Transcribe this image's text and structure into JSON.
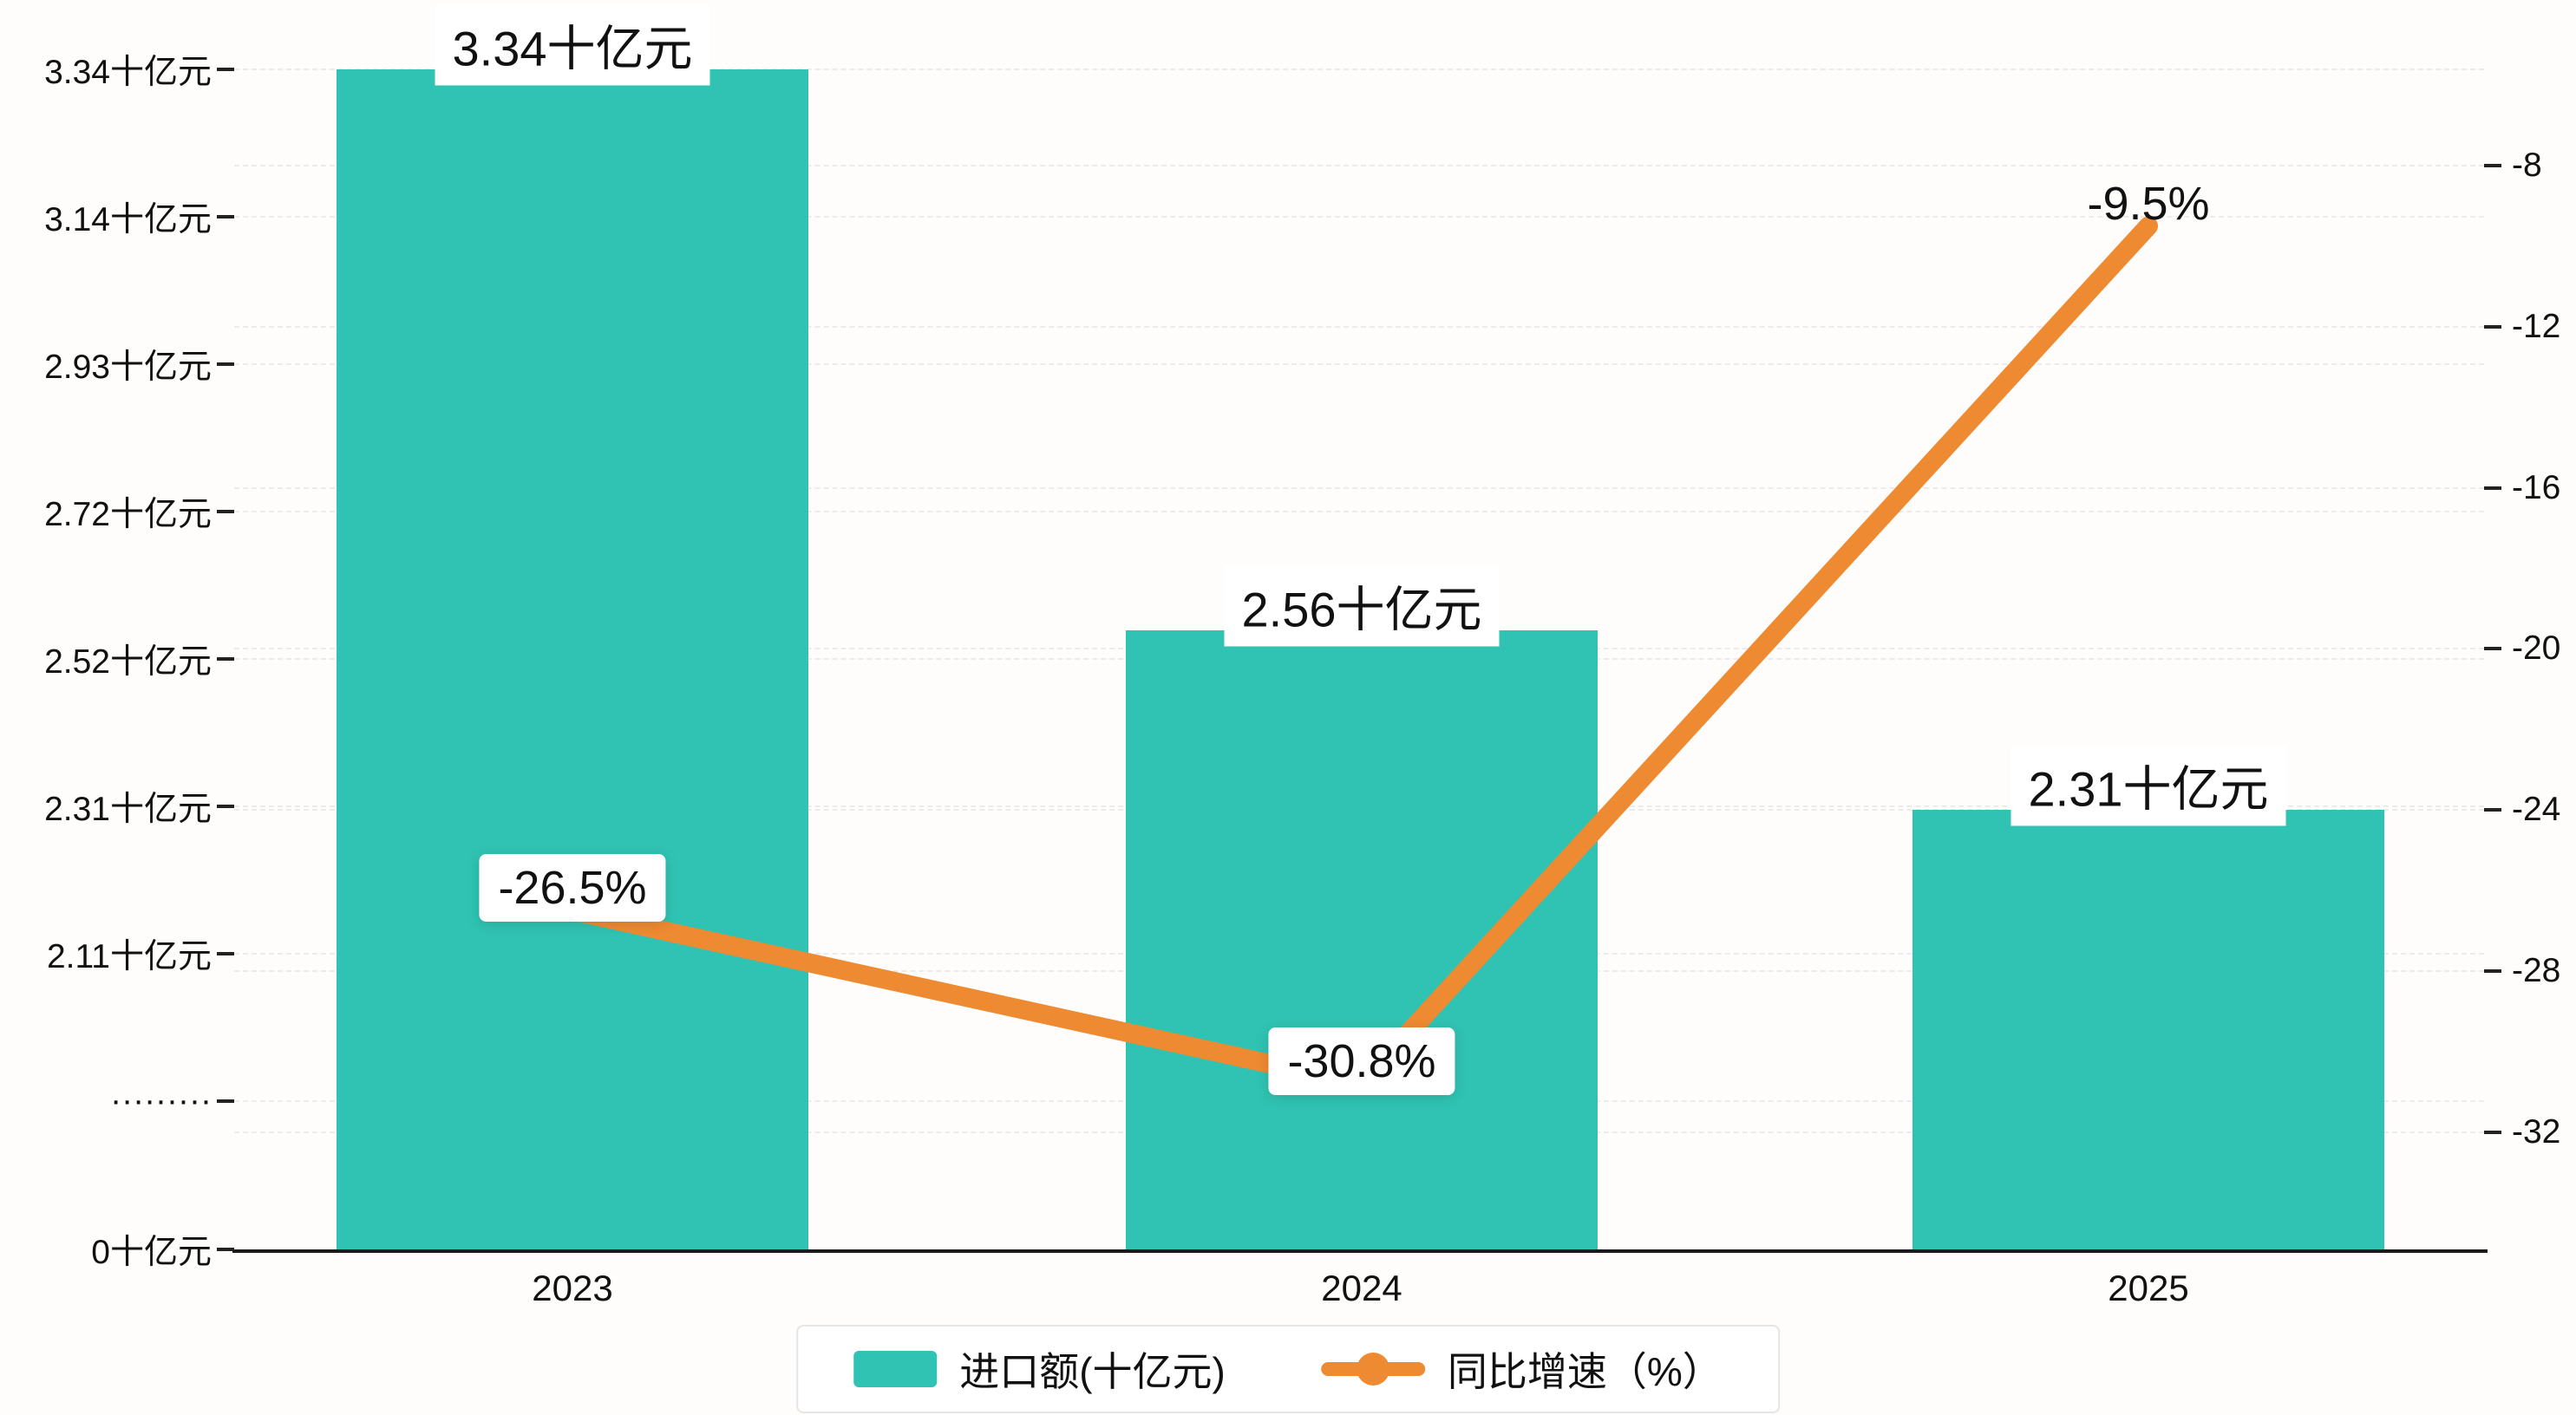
{
  "chart_data": {
    "type": "bar",
    "categories": [
      "2023",
      "2024",
      "2025"
    ],
    "series": [
      {
        "name": "进口额(十亿元)",
        "type": "bar",
        "unit": "十亿元",
        "color": "#30c3b3",
        "values": [
          3.34,
          2.56,
          2.31
        ],
        "point_labels": [
          "3.34十亿元",
          "2.56十亿元",
          "2.31十亿元"
        ]
      },
      {
        "name": "同比增速（%）",
        "type": "line",
        "unit": "%",
        "color": "#ee8a31",
        "values": [
          -26.5,
          -30.8,
          -9.5
        ],
        "point_labels": [
          "-26.5%",
          "-30.8%",
          "-9.5%"
        ],
        "label_boxed": [
          true,
          true,
          false
        ]
      }
    ],
    "left_axis": {
      "tick_labels": [
        "3.34十亿元",
        "3.14十亿元",
        "2.93十亿元",
        "2.72十亿元",
        "2.52十亿元",
        "2.31十亿元",
        "2.11十亿元",
        "·········",
        "0十亿元"
      ],
      "broken": true,
      "range_shown": [
        0,
        3.34
      ]
    },
    "right_axis": {
      "tick_labels": [
        "-8",
        "-12",
        "-16",
        "-20",
        "-24",
        "-28",
        "-32"
      ],
      "range": [
        -32,
        -8
      ]
    },
    "grid": true,
    "legend_position": "bottom",
    "colors": {
      "bar": "#30c3b3",
      "line": "#ee8a31",
      "text": "#111111",
      "grid": "#ebebeb",
      "axis": "#1a1a1a",
      "label_bg": "#ffffff",
      "background": "#fffdfb",
      "legend_border": "#e5e5e5"
    }
  }
}
